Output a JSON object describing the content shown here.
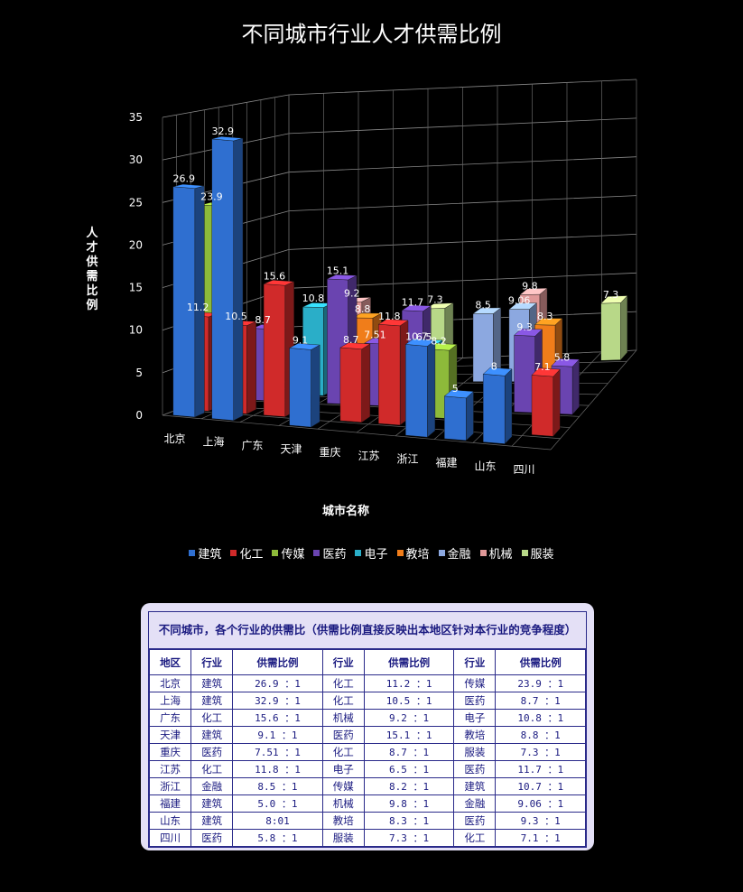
{
  "chart_data": {
    "type": "bar",
    "subtype": "3d-clustered-column",
    "title": "不同城市行业人才供需比例",
    "xlabel": "城市名称",
    "ylabel": "人才供需比例",
    "ylim": [
      0,
      35
    ],
    "yticks": [
      0,
      5,
      10,
      15,
      20,
      25,
      30,
      35
    ],
    "grid": true,
    "legend_position": "bottom",
    "categories": [
      "北京",
      "上海",
      "广东",
      "天津",
      "重庆",
      "江苏",
      "浙江",
      "福建",
      "山东",
      "四川"
    ],
    "series": [
      {
        "name": "建筑",
        "color": "#2f6fd0",
        "values": [
          26.9,
          32.9,
          null,
          9.1,
          null,
          null,
          10.7,
          5,
          8,
          null
        ]
      },
      {
        "name": "化工",
        "color": "#d02a2a",
        "values": [
          11.2,
          10.5,
          15.6,
          null,
          8.7,
          11.8,
          null,
          null,
          null,
          7.1
        ]
      },
      {
        "name": "传媒",
        "color": "#8dba3a",
        "values": [
          23.9,
          null,
          null,
          null,
          null,
          null,
          8.2,
          null,
          null,
          null
        ]
      },
      {
        "name": "医药",
        "color": "#6a44b0",
        "values": [
          null,
          8.7,
          null,
          15.1,
          7.51,
          11.7,
          null,
          null,
          9.3,
          5.8
        ]
      },
      {
        "name": "电子",
        "color": "#2aaec8",
        "values": [
          null,
          null,
          10.8,
          null,
          null,
          6.5,
          null,
          null,
          null,
          null
        ]
      },
      {
        "name": "教培",
        "color": "#f07d1a",
        "values": [
          null,
          null,
          null,
          8.8,
          null,
          null,
          null,
          null,
          8.3,
          null
        ]
      },
      {
        "name": "金融",
        "color": "#8ca8e0",
        "values": [
          null,
          null,
          null,
          null,
          null,
          null,
          8.5,
          9.06,
          null,
          null
        ]
      },
      {
        "name": "机械",
        "color": "#e09898",
        "values": [
          null,
          null,
          9.2,
          null,
          null,
          null,
          null,
          9.8,
          null,
          null
        ]
      },
      {
        "name": "服装",
        "color": "#b8d888",
        "values": [
          null,
          null,
          null,
          null,
          7.3,
          null,
          null,
          null,
          null,
          7.3
        ]
      }
    ]
  },
  "table": {
    "caption": "不同城市，各个行业的供需比（供需比例直接反映出本地区针对本行业的竞争程度）",
    "headers": [
      "地区",
      "行业",
      "供需比例",
      "行业",
      "供需比例",
      "行业",
      "供需比例"
    ],
    "rows": [
      [
        "北京",
        "建筑",
        "26.9 ：1",
        "化工",
        "11.2 ：1",
        "传媒",
        "23.9 ：1"
      ],
      [
        "上海",
        "建筑",
        "32.9 ：1",
        "化工",
        "10.5 ：1",
        "医药",
        "8.7 ：1"
      ],
      [
        "广东",
        "化工",
        "15.6 ：1",
        "机械",
        "9.2 ：1",
        "电子",
        "10.8 ：1"
      ],
      [
        "天津",
        "建筑",
        "9.1 ：1",
        "医药",
        "15.1 ：1",
        "教培",
        "8.8 ：1"
      ],
      [
        "重庆",
        "医药",
        "7.51 ：1",
        "化工",
        "8.7 ：1",
        "服装",
        "7.3 ：1"
      ],
      [
        "江苏",
        "化工",
        "11.8 ：1",
        "电子",
        "6.5 ：1",
        "医药",
        "11.7 ：1"
      ],
      [
        "浙江",
        "金融",
        "8.5 ：1",
        "传媒",
        "8.2 ：1",
        "建筑",
        "10.7 ：1"
      ],
      [
        "福建",
        "建筑",
        "5.0 ：1",
        "机械",
        "9.8 ：1",
        "金融",
        "9.06 ：1"
      ],
      [
        "山东",
        "建筑",
        "8:01",
        "教培",
        "8.3 ：1",
        "医药",
        "9.3 ：1"
      ],
      [
        "四川",
        "医药",
        "5.8 ：1",
        "服装",
        "7.3 ：1",
        "化工",
        "7.1 ：1"
      ]
    ]
  }
}
